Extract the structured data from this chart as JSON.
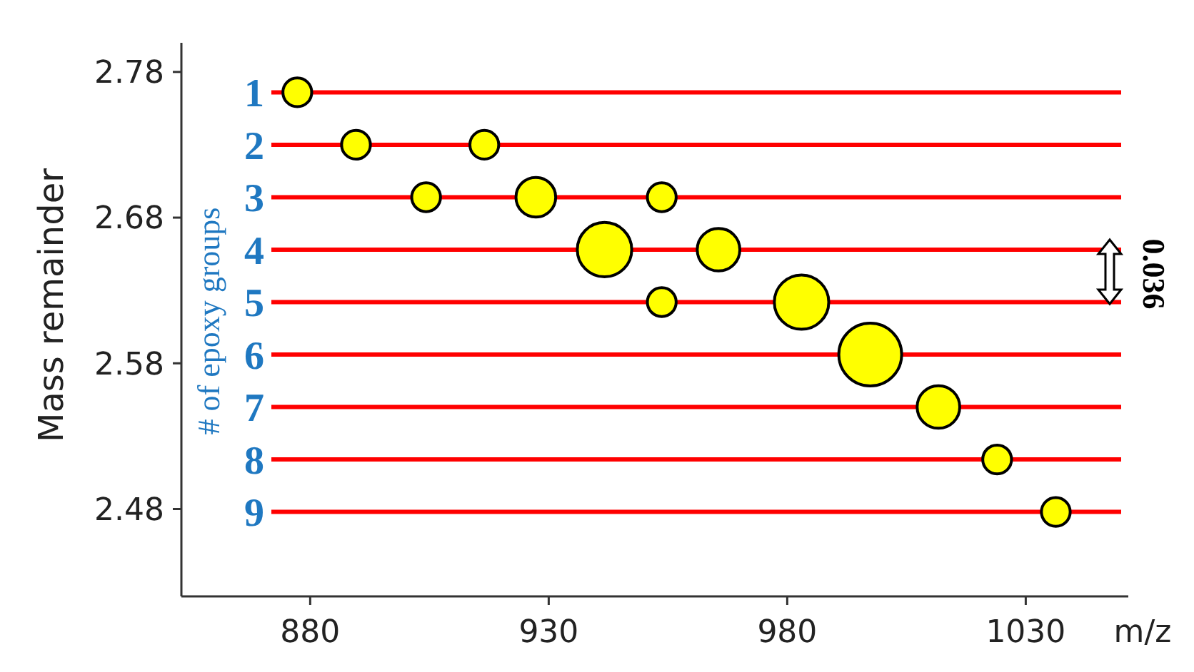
{
  "chart_data": {
    "type": "bubble",
    "ylabel": "Mass remainder",
    "xlabel": "m/z",
    "xlim": [
      853,
      1050
    ],
    "xticks": [
      880,
      930,
      980,
      1030
    ],
    "ylim": [
      2.42,
      2.8
    ],
    "yticks": [
      2.48,
      2.58,
      2.68,
      2.78
    ],
    "series": [
      {
        "color": "#ffff00",
        "x": [
          877.3,
          889.6,
          916.5,
          904.3,
          927.3,
          953.7,
          941.7,
          965.6,
          953.7,
          983.0,
          997.4,
          1011.7,
          1024.0,
          1036.3
        ],
        "values": [
          2.766,
          2.73,
          2.73,
          2.694,
          2.694,
          2.694,
          2.658,
          2.658,
          2.622,
          2.622,
          2.586,
          2.55,
          2.514,
          2.478
        ],
        "sizes": [
          0.21,
          0.21,
          0.21,
          0.21,
          0.4,
          0.21,
          0.75,
          0.46,
          0.21,
          0.75,
          1,
          0.46,
          0.21,
          0.21
        ]
      }
    ],
    "ref_lines": [
      {
        "axis": "y",
        "value": 2.766,
        "color": "#ff0000"
      },
      {
        "axis": "y",
        "value": 2.73,
        "color": "#ff0000"
      },
      {
        "axis": "y",
        "value": 2.694,
        "color": "#ff0000"
      },
      {
        "axis": "y",
        "value": 2.658,
        "color": "#ff0000"
      },
      {
        "axis": "y",
        "value": 2.622,
        "color": "#ff0000"
      },
      {
        "axis": "y",
        "value": 2.586,
        "color": "#ff0000"
      },
      {
        "axis": "y",
        "value": 2.55,
        "color": "#ff0000"
      },
      {
        "axis": "y",
        "value": 2.514,
        "color": "#ff0000"
      },
      {
        "axis": "y",
        "value": 2.478,
        "color": "#ff0000"
      }
    ],
    "annotations": [
      "# of epoxy groups",
      "0.036",
      "1",
      "2",
      "3",
      "4",
      "5",
      "6",
      "7",
      "8",
      "9"
    ],
    "grid": false
  }
}
